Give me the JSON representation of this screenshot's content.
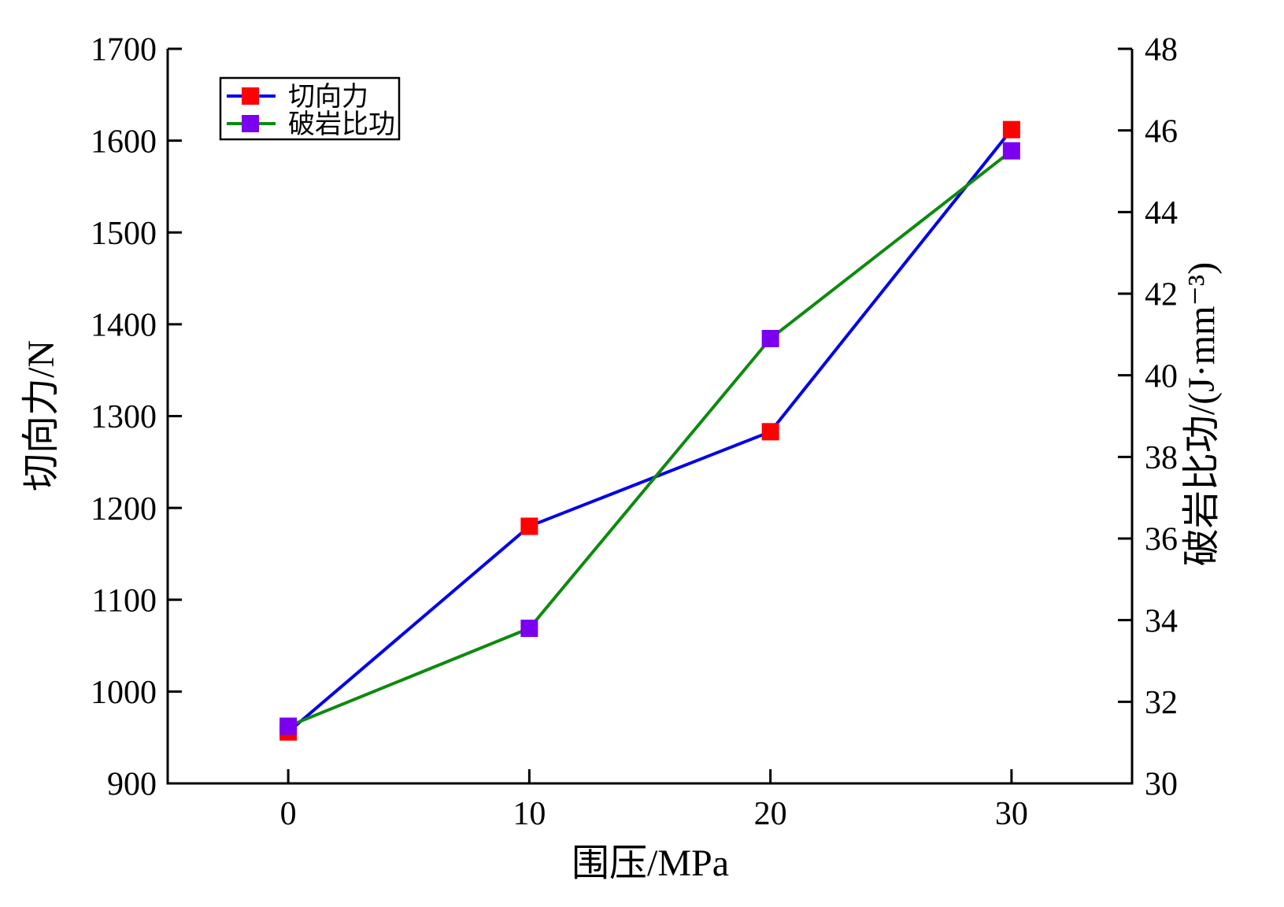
{
  "figure": {
    "background": "#ffffff",
    "axis_color": "#000000",
    "tick_direction": "in"
  },
  "chart_data": {
    "type": "line",
    "x_label": "围压/MPa",
    "y_left_label": "切向力/N",
    "y_right_label": "破岩比功/(J·mm⁻³)",
    "x": [
      0,
      10,
      20,
      30
    ],
    "x_lim": [
      -5,
      35
    ],
    "x_ticks": [
      0,
      10,
      20,
      30
    ],
    "y_left_lim": [
      900,
      1700
    ],
    "y_left_ticks": [
      900,
      1000,
      1100,
      1200,
      1300,
      1400,
      1500,
      1600,
      1700
    ],
    "y_right_lim": [
      30,
      48
    ],
    "y_right_ticks": [
      30,
      32,
      34,
      36,
      38,
      40,
      42,
      44,
      46,
      48
    ],
    "grid": false,
    "legend": {
      "position": "upper-left",
      "border_color": "#000000",
      "background": "#ffffff",
      "entries": [
        "切向力",
        "破岩比功"
      ]
    },
    "series": [
      {
        "name": "切向力",
        "axis": "left",
        "values": [
          956,
          1180,
          1283,
          1612
        ],
        "line_color": "#0000ee",
        "marker": "square",
        "marker_color": "#ff0000"
      },
      {
        "name": "破岩比功",
        "axis": "right",
        "values": [
          31.4,
          33.8,
          40.9,
          45.5
        ],
        "line_color": "#0e8a0e",
        "marker": "square",
        "marker_color": "#7b00f0"
      }
    ]
  }
}
